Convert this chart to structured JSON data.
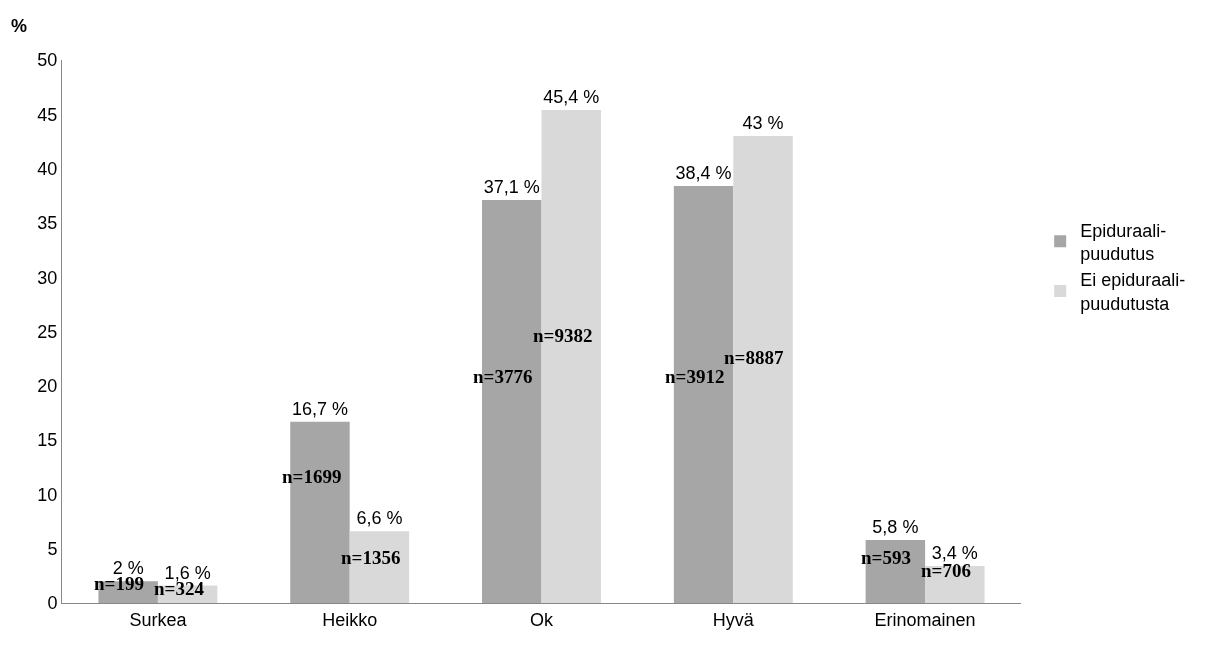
{
  "chart_data": {
    "type": "bar",
    "ylabel": "%",
    "categories": [
      "Surkea",
      "Heikko",
      "Ok",
      "Hyvä",
      "Erinomainen"
    ],
    "series": [
      {
        "name": "Epiduraali-puudutus",
        "color": "#a6a6a6",
        "values": [
          2,
          16.7,
          37.1,
          38.4,
          5.8
        ],
        "value_labels": [
          "2 %",
          "16,7 %",
          "37,1 %",
          "38,4 %",
          "5,8 %"
        ]
      },
      {
        "name": "Ei epiduraali-puudutusta",
        "color": "#d9d9d9",
        "values": [
          1.6,
          6.6,
          45.4,
          43,
          3.4
        ],
        "value_labels": [
          "1,6 %",
          "6,6 %",
          "45,4 %",
          "43 %",
          "3,4 %"
        ]
      }
    ],
    "ylim": [
      0,
      50
    ],
    "yticks": [
      0,
      5,
      10,
      15,
      20,
      25,
      30,
      35,
      40,
      45,
      50
    ],
    "grid": false,
    "legend": "right",
    "annotations": [
      {
        "text": "n=199",
        "x": "Surkea",
        "y": 0.6
      },
      {
        "text": "n=324",
        "x": "Surkea",
        "y": 0.2
      },
      {
        "text": "n=1699",
        "x": "Heikko",
        "y": 10.5
      },
      {
        "text": "n=1356",
        "x": "Heikko",
        "y": 3
      },
      {
        "text": "n=3776",
        "x": "Ok",
        "y": 19.7
      },
      {
        "text": "n=9382",
        "x": "Ok",
        "y": 23.5
      },
      {
        "text": "n=3912",
        "x": "Hyvä",
        "y": 19.7
      },
      {
        "text": "n=8887",
        "x": "Hyvä",
        "y": 21.5
      },
      {
        "text": "n=593",
        "x": "Erinomainen",
        "y": 3
      },
      {
        "text": "n=706",
        "x": "Erinomainen",
        "y": 1.8
      }
    ]
  }
}
